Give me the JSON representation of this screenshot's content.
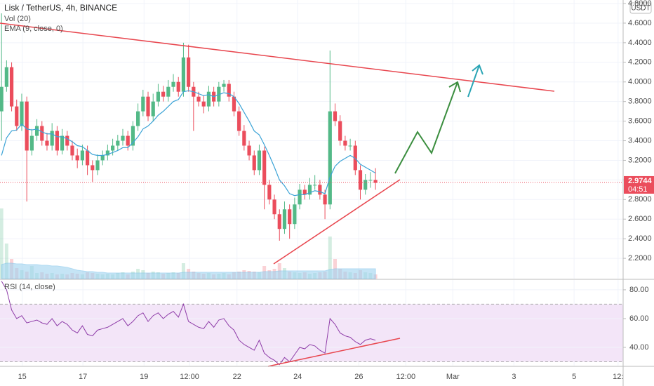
{
  "chart_data": [
    {
      "type": "candlestick",
      "title": "Lisk / TetherUS, 4h, BINANCE",
      "currency": "USDT",
      "x": [
        0,
        1,
        2,
        3,
        4,
        5,
        6,
        7,
        8,
        9,
        10,
        11,
        12,
        13,
        14,
        15,
        16,
        17,
        18,
        19,
        20,
        21,
        22,
        23,
        24,
        25,
        26,
        27,
        28,
        29,
        30,
        31,
        32,
        33,
        34,
        35,
        36,
        37,
        38,
        39,
        40,
        41,
        42,
        43,
        44,
        45,
        46,
        47,
        48,
        49,
        50,
        51,
        52,
        53,
        54,
        55,
        56,
        57,
        58,
        59,
        60,
        61,
        62,
        63,
        64,
        65,
        66,
        67,
        68,
        69,
        70,
        71,
        72,
        73,
        74
      ],
      "open": [
        3.7,
        3.95,
        4.15,
        3.75,
        3.55,
        3.8,
        3.3,
        3.45,
        3.55,
        3.4,
        3.35,
        3.5,
        3.3,
        3.45,
        3.35,
        3.25,
        3.2,
        3.3,
        3.15,
        3.1,
        3.2,
        3.25,
        3.3,
        3.35,
        3.4,
        3.45,
        3.35,
        3.55,
        3.7,
        3.85,
        3.65,
        3.8,
        3.9,
        3.85,
        3.95,
        4.0,
        3.9,
        4.25,
        3.95,
        3.85,
        3.8,
        3.75,
        3.9,
        3.8,
        3.95,
        3.98,
        3.85,
        3.7,
        3.5,
        3.35,
        3.25,
        3.1,
        3.3,
        2.95,
        2.8,
        2.65,
        2.5,
        2.7,
        2.55,
        2.75,
        2.9,
        2.85,
        2.95,
        2.95,
        2.85,
        2.75,
        3.7,
        3.6,
        3.4,
        3.35,
        3.35,
        3.1,
        2.9,
        3.0,
        3.0
      ],
      "high": [
        4.7,
        4.22,
        4.2,
        3.82,
        3.88,
        3.85,
        3.52,
        3.62,
        3.6,
        3.48,
        3.58,
        3.55,
        3.52,
        3.5,
        3.4,
        3.32,
        3.36,
        3.35,
        3.2,
        3.26,
        3.3,
        3.36,
        3.42,
        3.46,
        3.52,
        3.5,
        3.6,
        3.78,
        3.92,
        3.9,
        3.88,
        3.98,
        3.96,
        4.02,
        4.08,
        4.05,
        4.4,
        4.38,
        4.0,
        3.9,
        3.86,
        3.96,
        3.95,
        4.0,
        4.02,
        4.02,
        3.9,
        3.75,
        3.56,
        3.4,
        3.3,
        3.36,
        3.34,
        3.0,
        2.85,
        2.7,
        2.78,
        2.75,
        2.82,
        2.96,
        2.95,
        3.02,
        3.05,
        3.0,
        2.9,
        4.32,
        3.78,
        3.66,
        3.45,
        3.42,
        3.4,
        3.15,
        3.06,
        3.08,
        3.12
      ],
      "low": [
        3.4,
        3.9,
        3.7,
        3.5,
        3.5,
        2.78,
        3.25,
        3.4,
        3.35,
        3.3,
        3.3,
        3.25,
        3.26,
        3.3,
        3.2,
        3.12,
        3.15,
        3.05,
        2.98,
        3.05,
        3.15,
        3.2,
        3.25,
        3.3,
        3.35,
        3.3,
        3.3,
        3.5,
        3.65,
        3.6,
        3.6,
        3.75,
        3.8,
        3.8,
        3.9,
        3.85,
        3.85,
        3.9,
        3.5,
        3.75,
        3.68,
        3.7,
        3.75,
        3.75,
        3.9,
        3.8,
        3.65,
        3.45,
        3.3,
        3.2,
        3.05,
        3.05,
        2.7,
        2.75,
        2.6,
        2.38,
        2.45,
        2.4,
        2.5,
        2.7,
        2.8,
        2.8,
        2.9,
        2.8,
        2.6,
        2.7,
        3.55,
        3.35,
        3.3,
        3.3,
        3.05,
        2.8,
        2.85,
        2.92,
        2.9
      ],
      "close": [
        3.95,
        4.15,
        3.75,
        3.55,
        3.8,
        3.3,
        3.45,
        3.55,
        3.4,
        3.35,
        3.5,
        3.3,
        3.45,
        3.35,
        3.25,
        3.2,
        3.3,
        3.15,
        3.1,
        3.2,
        3.25,
        3.3,
        3.35,
        3.4,
        3.45,
        3.35,
        3.55,
        3.7,
        3.85,
        3.65,
        3.8,
        3.9,
        3.85,
        3.95,
        4.0,
        3.9,
        4.25,
        3.95,
        3.85,
        3.8,
        3.75,
        3.9,
        3.8,
        3.95,
        3.98,
        3.85,
        3.7,
        3.5,
        3.35,
        3.25,
        3.1,
        3.3,
        2.95,
        2.8,
        2.65,
        2.5,
        2.7,
        2.55,
        2.75,
        2.9,
        2.85,
        2.95,
        2.95,
        2.85,
        2.75,
        3.7,
        3.6,
        3.4,
        3.35,
        3.35,
        3.1,
        2.9,
        3.0,
        3.0,
        2.97
      ],
      "up_color": "#53b987",
      "down_color": "#eb4d5c",
      "series": [
        {
          "name": "EMA (9, close, 0)",
          "color": "#3ba3d6",
          "values": [
            3.25,
            3.43,
            3.5,
            3.51,
            3.57,
            3.52,
            3.51,
            3.52,
            3.49,
            3.47,
            3.47,
            3.44,
            3.44,
            3.42,
            3.39,
            3.35,
            3.34,
            3.3,
            3.26,
            3.25,
            3.25,
            3.26,
            3.28,
            3.3,
            3.33,
            3.33,
            3.38,
            3.44,
            3.52,
            3.55,
            3.6,
            3.66,
            3.7,
            3.75,
            3.8,
            3.82,
            3.9,
            3.91,
            3.9,
            3.88,
            3.86,
            3.87,
            3.85,
            3.87,
            3.89,
            3.88,
            3.85,
            3.78,
            3.69,
            3.6,
            3.5,
            3.46,
            3.36,
            3.25,
            3.13,
            3.0,
            2.94,
            2.86,
            2.84,
            2.85,
            2.85,
            2.87,
            2.89,
            2.88,
            2.86,
            3.03,
            3.14,
            3.19,
            3.22,
            3.25,
            3.22,
            3.16,
            3.13,
            3.1,
            3.07
          ]
        }
      ],
      "volume": {
        "name": "Vol (20)",
        "color": "#9fd3f0",
        "values": [
          100,
          50,
          28,
          15,
          12,
          10,
          18,
          8,
          9,
          7,
          8,
          6,
          7,
          6,
          8,
          7,
          6,
          9,
          8,
          7,
          6,
          7,
          6,
          8,
          9,
          6,
          10,
          14,
          12,
          8,
          10,
          9,
          7,
          8,
          9,
          8,
          22,
          14,
          10,
          8,
          7,
          8,
          6,
          7,
          8,
          6,
          9,
          10,
          12,
          11,
          10,
          9,
          18,
          12,
          14,
          22,
          15,
          10,
          9,
          8,
          9,
          7,
          8,
          9,
          10,
          60,
          28,
          14,
          10,
          9,
          8,
          12,
          9,
          8,
          6
        ],
        "ma": [
          20,
          22,
          22,
          21,
          21,
          20,
          20,
          20,
          19,
          19,
          18,
          18,
          17,
          16,
          14,
          12,
          11,
          10,
          10,
          9,
          9,
          8,
          8,
          8,
          8,
          8,
          8,
          8,
          8,
          8,
          8,
          8,
          8,
          8,
          8,
          8,
          9,
          9,
          9,
          9,
          9,
          9,
          9,
          9,
          9,
          9,
          9,
          9,
          9,
          9,
          9,
          9,
          10,
          10,
          10,
          11,
          11,
          11,
          11,
          11,
          11,
          11,
          11,
          11,
          11,
          13,
          14,
          14,
          14,
          14,
          14,
          14,
          14,
          14,
          14
        ]
      },
      "last_price": {
        "value": 2.9744,
        "label": "2.9744"
      },
      "countdown": "04:51",
      "xlim": [
        -0.3,
        123
      ],
      "ylim": [
        1.993,
        4.836
      ],
      "yticks": [
        {
          "value": 2.2,
          "label": "2.2000"
        },
        {
          "value": 2.4,
          "label": "2.4000"
        },
        {
          "value": 2.6,
          "label": "2.6000"
        },
        {
          "value": 2.8,
          "label": "2.8000"
        },
        {
          "value": 3.0,
          "label": "3.0000"
        },
        {
          "value": 3.2,
          "label": "3.2000"
        },
        {
          "value": 3.4,
          "label": "3.4000"
        },
        {
          "value": 3.6,
          "label": "3.6000"
        },
        {
          "value": 3.8,
          "label": "3.8000"
        },
        {
          "value": 4.0,
          "label": "4.0000"
        },
        {
          "value": 4.2,
          "label": "4.2000"
        },
        {
          "value": 4.4,
          "label": "4.4000"
        },
        {
          "value": 4.6,
          "label": "4.6000"
        },
        {
          "value": 4.8,
          "label": "4.8000"
        }
      ],
      "grid": true
    },
    {
      "type": "line",
      "title": "RSI (14, close)",
      "x": [
        0,
        1,
        2,
        3,
        4,
        5,
        6,
        7,
        8,
        9,
        10,
        11,
        12,
        13,
        14,
        15,
        16,
        17,
        18,
        19,
        20,
        21,
        22,
        23,
        24,
        25,
        26,
        27,
        28,
        29,
        30,
        31,
        32,
        33,
        34,
        35,
        36,
        37,
        38,
        39,
        40,
        41,
        42,
        43,
        44,
        45,
        46,
        47,
        48,
        49,
        50,
        51,
        52,
        53,
        54,
        55,
        56,
        57,
        58,
        59,
        60,
        61,
        62,
        63,
        64,
        65,
        66,
        67,
        68,
        69,
        70,
        71,
        72,
        73,
        74
      ],
      "series": [
        {
          "name": "RSI (14, close)",
          "color": "#8e3ca8",
          "values": [
            86,
            80,
            66,
            60,
            62,
            57,
            58,
            59,
            57,
            56,
            60,
            55,
            58,
            56,
            52,
            50,
            55,
            49,
            48,
            52,
            53,
            54,
            56,
            58,
            60,
            55,
            58,
            62,
            64,
            58,
            62,
            64,
            60,
            63,
            65,
            61,
            70,
            58,
            56,
            54,
            53,
            58,
            54,
            59,
            60,
            55,
            52,
            45,
            42,
            40,
            38,
            45,
            36,
            33,
            31,
            28,
            33,
            30,
            35,
            40,
            39,
            42,
            41,
            38,
            36,
            60,
            56,
            50,
            48,
            47,
            44,
            42,
            45,
            46,
            45
          ]
        }
      ],
      "band": [
        30,
        70
      ],
      "band_color": "#f3e5f8",
      "xlim": [
        -0.3,
        123
      ],
      "ylim": [
        27.8,
        86.3
      ],
      "yticks": [
        {
          "value": 40,
          "label": "40.00"
        },
        {
          "value": 60,
          "label": "60.00"
        },
        {
          "value": 80,
          "label": "80.00"
        }
      ],
      "xticks": [
        {
          "value": 4.1,
          "label": "15"
        },
        {
          "value": 16.1,
          "label": "17"
        },
        {
          "value": 28.2,
          "label": "19"
        },
        {
          "value": 37.2,
          "label": "12:00"
        },
        {
          "value": 46.6,
          "label": "22"
        },
        {
          "value": 58.6,
          "label": "24"
        },
        {
          "value": 70.7,
          "label": "26"
        },
        {
          "value": 80,
          "label": "12:00"
        },
        {
          "value": 89.3,
          "label": "Mar"
        },
        {
          "value": 101.4,
          "label": "3"
        },
        {
          "value": 113.3,
          "label": "5"
        },
        {
          "value": 122,
          "label": "12:"
        }
      ],
      "grid": true
    }
  ]
}
